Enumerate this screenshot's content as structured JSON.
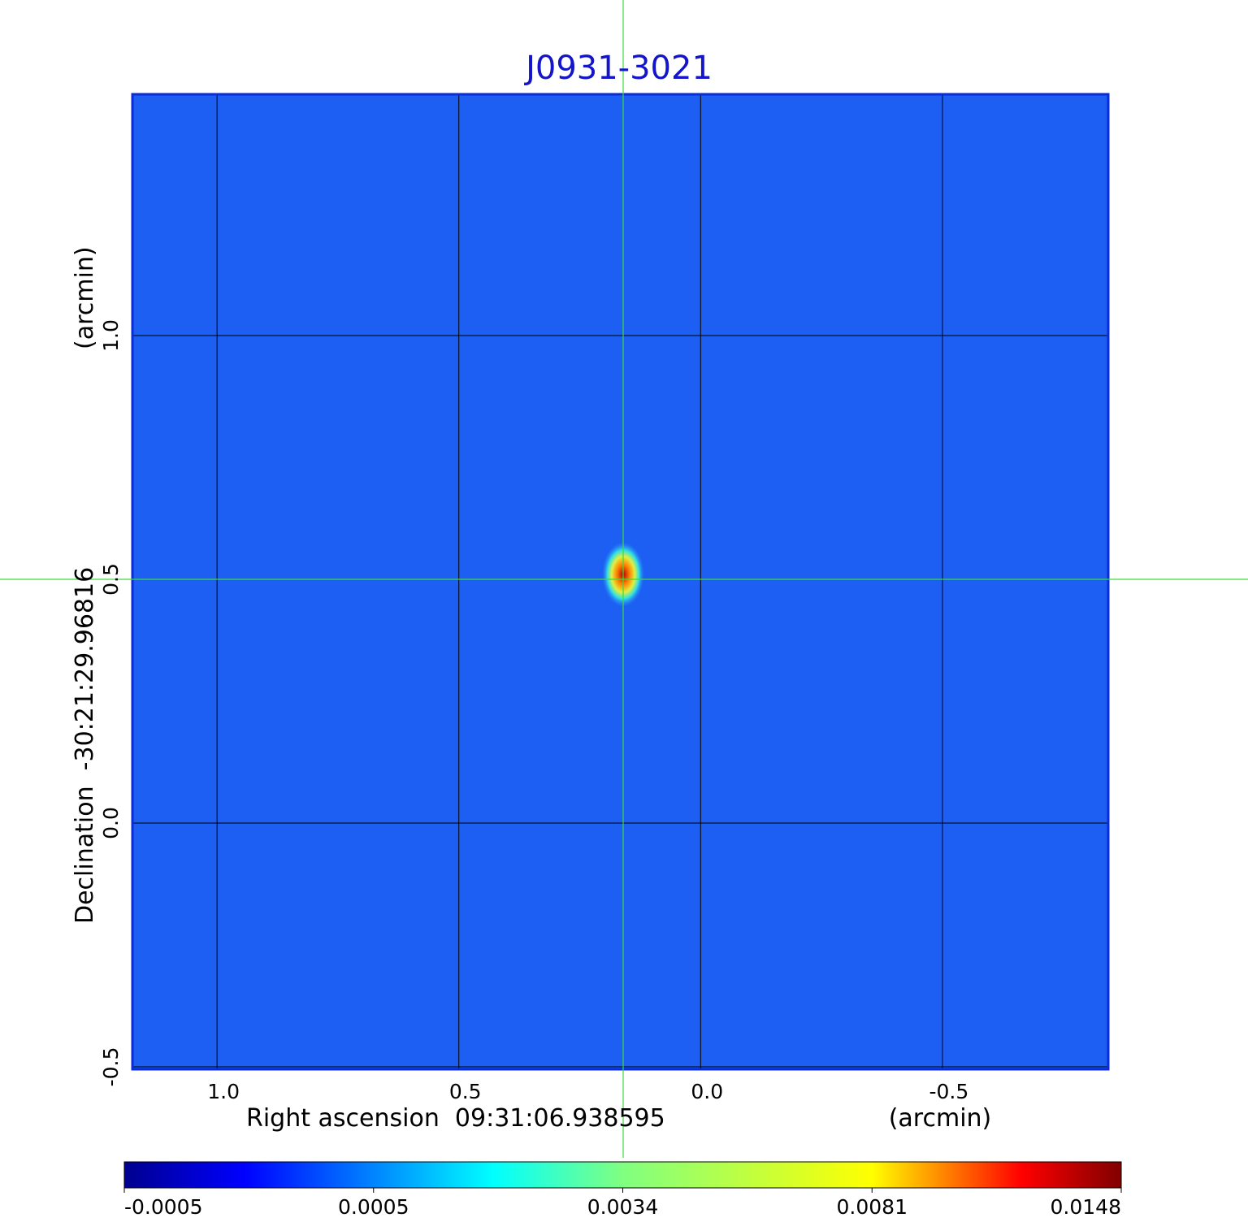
{
  "chart_data": {
    "type": "image",
    "title": "J0931-3021",
    "x_label": "Right ascension  09:31:06.938595",
    "x_unit": "(arcmin)",
    "y_label": "Declination  -30:21:29.96816",
    "y_unit": "(arcmin)",
    "xlim": [
      1.175,
      -0.843
    ],
    "xticks": [
      {
        "value": 1.0,
        "label": "1.0"
      },
      0.5,
      {
        "value": 0.0,
        "label": "0.0"
      },
      -0.5
    ],
    "ylim": [
      -0.505,
      1.495
    ],
    "yticks": [
      -0.5,
      {
        "value": 0.0,
        "label": "0.0"
      },
      0.5,
      {
        "value": 1.0,
        "label": "1.0"
      }
    ],
    "grid": true,
    "colorbar_ticks": [
      -0.0005,
      0.0005,
      0.0034,
      0.0081,
      0.0148
    ]
  }
}
